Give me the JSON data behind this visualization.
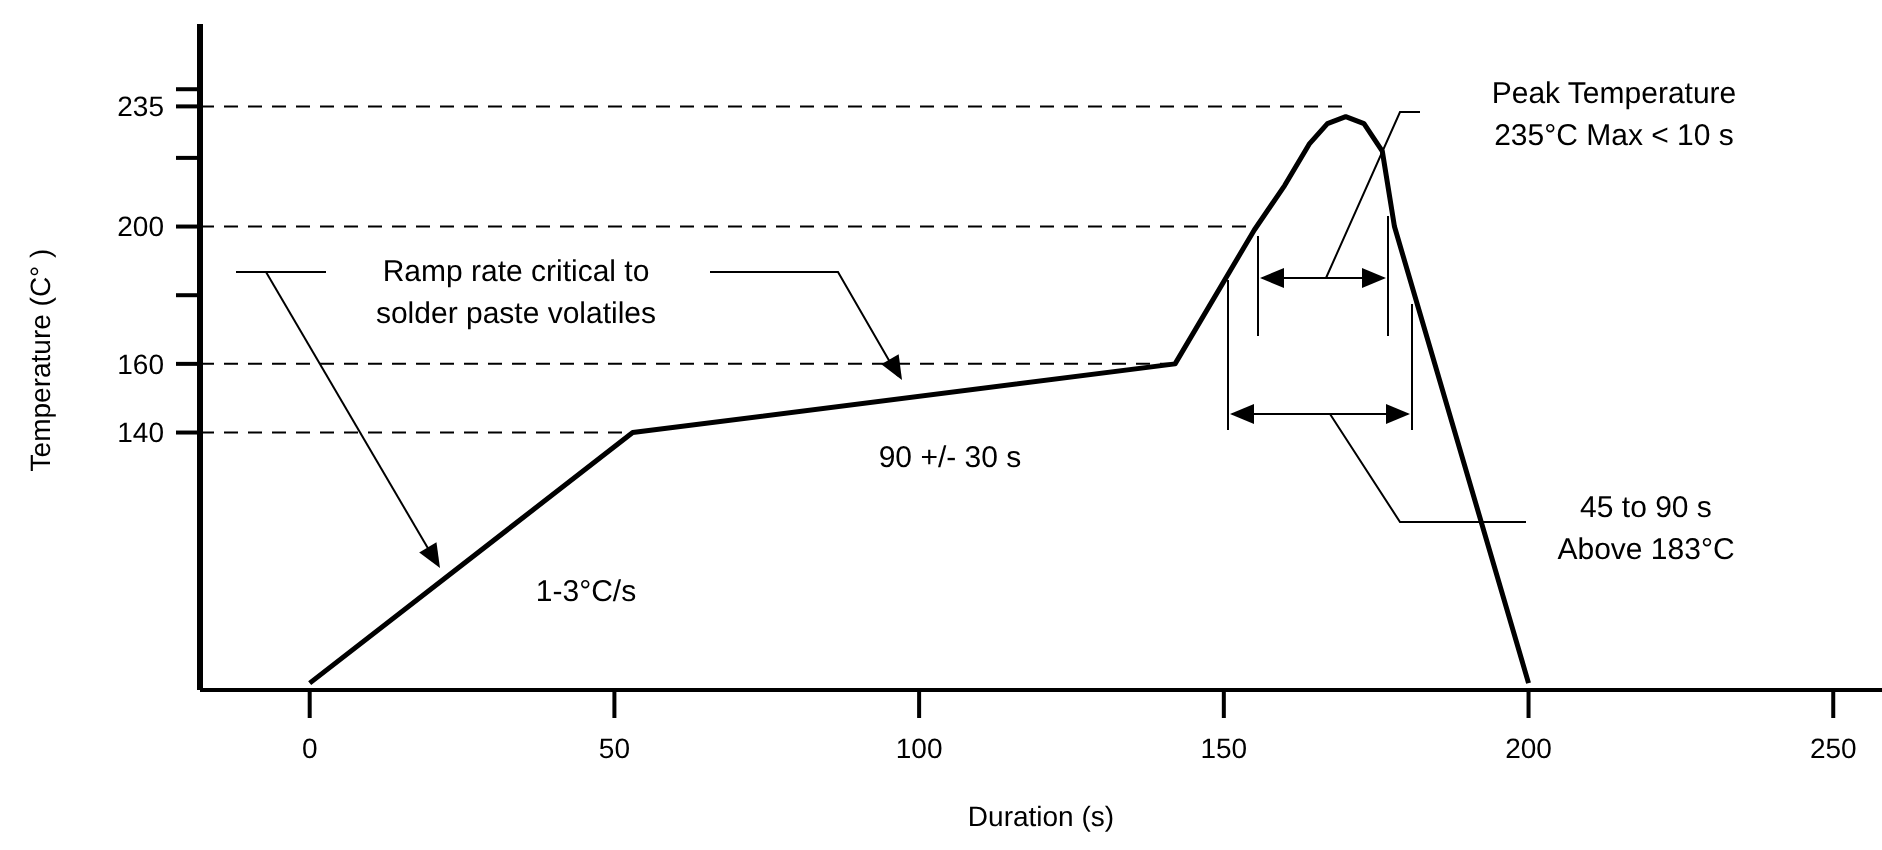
{
  "chart_data": {
    "type": "line",
    "xlabel": "Duration (s)",
    "ylabel": "Temperature (C° )",
    "x": [
      0,
      53,
      142,
      155,
      160,
      164,
      167,
      170,
      173,
      176,
      178,
      200
    ],
    "series": [
      {
        "color": "#000000",
        "values": [
          67,
          140,
          160,
          199,
          212,
          224,
          230,
          232,
          230,
          222,
          200,
          67
        ]
      }
    ],
    "xlim": [
      -18,
      258
    ],
    "xticks": [
      0,
      50,
      100,
      150,
      200,
      250
    ],
    "ylim": [
      65,
      259
    ],
    "yticks": [
      140,
      160,
      {
        "value": 180,
        "label": null
      },
      200,
      {
        "value": 220,
        "label": null
      },
      {
        "value": 235,
        "label": "235"
      },
      {
        "value": 240,
        "label": null
      }
    ],
    "ref_lines": [
      {
        "axis": "y",
        "value": 140,
        "line_style": "dashed"
      },
      {
        "axis": "y",
        "value": 160,
        "line_style": "dashed"
      },
      {
        "axis": "y",
        "value": 200,
        "line_style": "dashed"
      },
      {
        "axis": "y",
        "value": 235,
        "line_style": "dashed"
      }
    ],
    "annotations": [
      "Ramp rate critical to solder paste volatiles",
      "90 +/- 30 s",
      "1-3°C/s",
      "Peak Temperature 235°C Max < 10 s",
      "45 to 90 s Above 183°C"
    ],
    "grid": false,
    "legend": false,
    "marker": "none",
    "line_style": "solid"
  }
}
